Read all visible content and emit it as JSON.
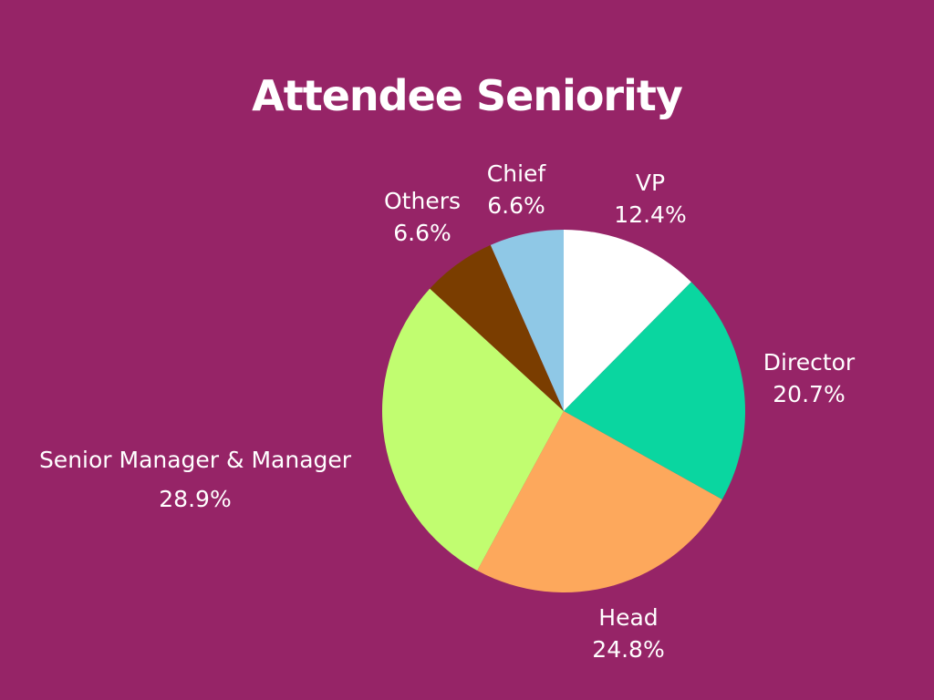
{
  "chart_data": {
    "type": "pie",
    "title": "Attendee Seniority",
    "slices": [
      {
        "label": "VP",
        "value": 12.4,
        "display": "12.4%",
        "color": "#ffffff"
      },
      {
        "label": "Director",
        "value": 20.7,
        "display": "20.7%",
        "color": "#0ad6a0"
      },
      {
        "label": "Head",
        "value": 24.8,
        "display": "24.8%",
        "color": "#fda85c"
      },
      {
        "label": "Senior Manager & Manager",
        "value": 28.9,
        "display": "28.9%",
        "color": "#c1fd70"
      },
      {
        "label": "Others",
        "value": 6.6,
        "display": "6.6%",
        "color": "#7a3d00"
      },
      {
        "label": "Chief",
        "value": 6.6,
        "display": "6.6%",
        "color": "#8fc8e6"
      }
    ],
    "start": "12 o'clock",
    "direction": "clockwise"
  }
}
